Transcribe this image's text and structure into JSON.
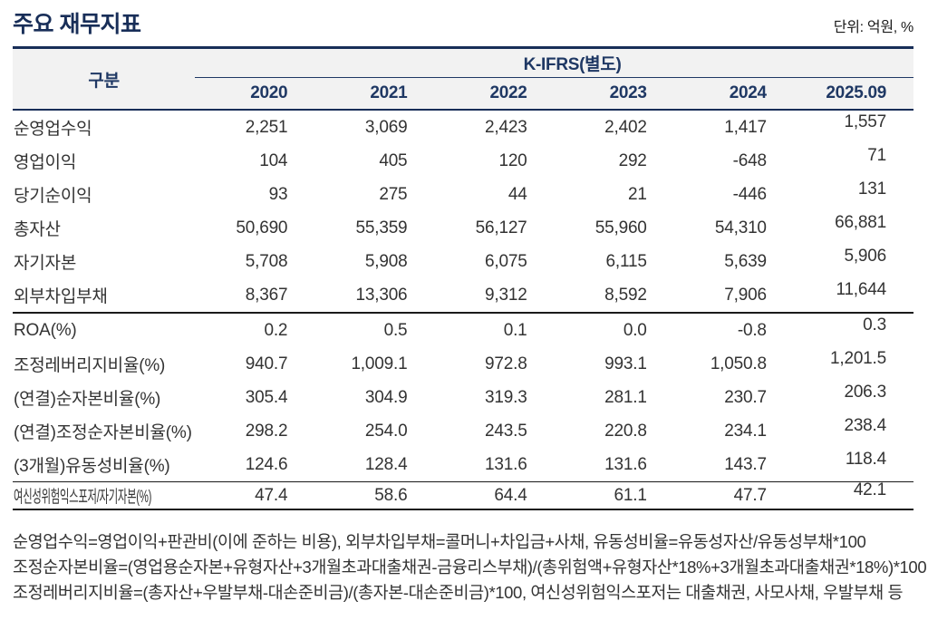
{
  "page": {
    "title": "주요 재무지표",
    "unit_note": "단위: 억원, %"
  },
  "table": {
    "corner_label": "구분",
    "group_header": "K-IFRS(별도)",
    "columns": [
      "2020",
      "2021",
      "2022",
      "2023",
      "2024",
      "2025.09"
    ],
    "rows": [
      {
        "label": "순영업수익",
        "values": [
          "2,251",
          "3,069",
          "2,423",
          "2,402",
          "1,417",
          "1,557"
        ]
      },
      {
        "label": "영업이익",
        "values": [
          "104",
          "405",
          "120",
          "292",
          "-648",
          "71"
        ]
      },
      {
        "label": "당기순이익",
        "values": [
          "93",
          "275",
          "44",
          "21",
          "-446",
          "131"
        ]
      },
      {
        "label": "총자산",
        "values": [
          "50,690",
          "55,359",
          "56,127",
          "55,960",
          "54,310",
          "66,881"
        ]
      },
      {
        "label": "자기자본",
        "values": [
          "5,708",
          "5,908",
          "6,075",
          "6,115",
          "5,639",
          "5,906"
        ]
      },
      {
        "label": "외부차입부채",
        "values": [
          "8,367",
          "13,306",
          "9,312",
          "8,592",
          "7,906",
          "11,644"
        ],
        "section_end": true
      },
      {
        "label": "ROA(%)",
        "values": [
          "0.2",
          "0.5",
          "0.1",
          "0.0",
          "-0.8",
          "0.3"
        ]
      },
      {
        "label": "조정레버리지비율(%)",
        "values": [
          "940.7",
          "1,009.1",
          "972.8",
          "993.1",
          "1,050.8",
          "1,201.5"
        ]
      },
      {
        "label": "(연결)순자본비율(%)",
        "values": [
          "305.4",
          "304.9",
          "319.3",
          "281.1",
          "230.7",
          "206.3"
        ]
      },
      {
        "label": "(연결)조정순자본비율(%)",
        "values": [
          "298.2",
          "254.0",
          "243.5",
          "220.8",
          "234.1",
          "238.4"
        ]
      },
      {
        "label": "(3개월)유동성비율(%)",
        "values": [
          "124.6",
          "128.4",
          "131.6",
          "131.6",
          "143.7",
          "118.4"
        ],
        "section_thin": true
      },
      {
        "label": "여신성위험익스포저/자기자본(%)",
        "values": [
          "47.4",
          "58.6",
          "64.4",
          "61.1",
          "47.7",
          "42.1"
        ],
        "condensed_label": true,
        "last_row": true
      }
    ]
  },
  "footnotes": [
    "순영업수익=영업이익+판관비(이에 준하는 비용), 외부차입부채=콜머니+차입금+사채, 유동성비율=유동성자산/유동성부채*100",
    "조정순자본비율=(영업용순자본+유형자산+3개월초과대출채권-금융리스부채)/(총위험액+유형자산*18%+3개월초과대출채권*18%)*100",
    "조정레버리지비율=(총자산+우발부채-대손준비금)/(총자본-대손준비금)*100, 여신성위험익스포저는 대출채권, 사모사채, 우발부채 등"
  ],
  "colors": {
    "navy_accent": "#182e58",
    "navy_text": "#1f3864",
    "header_band_bg": "#f2f2f2",
    "body_text": "#333333",
    "section_rule": "#1a1a1a"
  }
}
